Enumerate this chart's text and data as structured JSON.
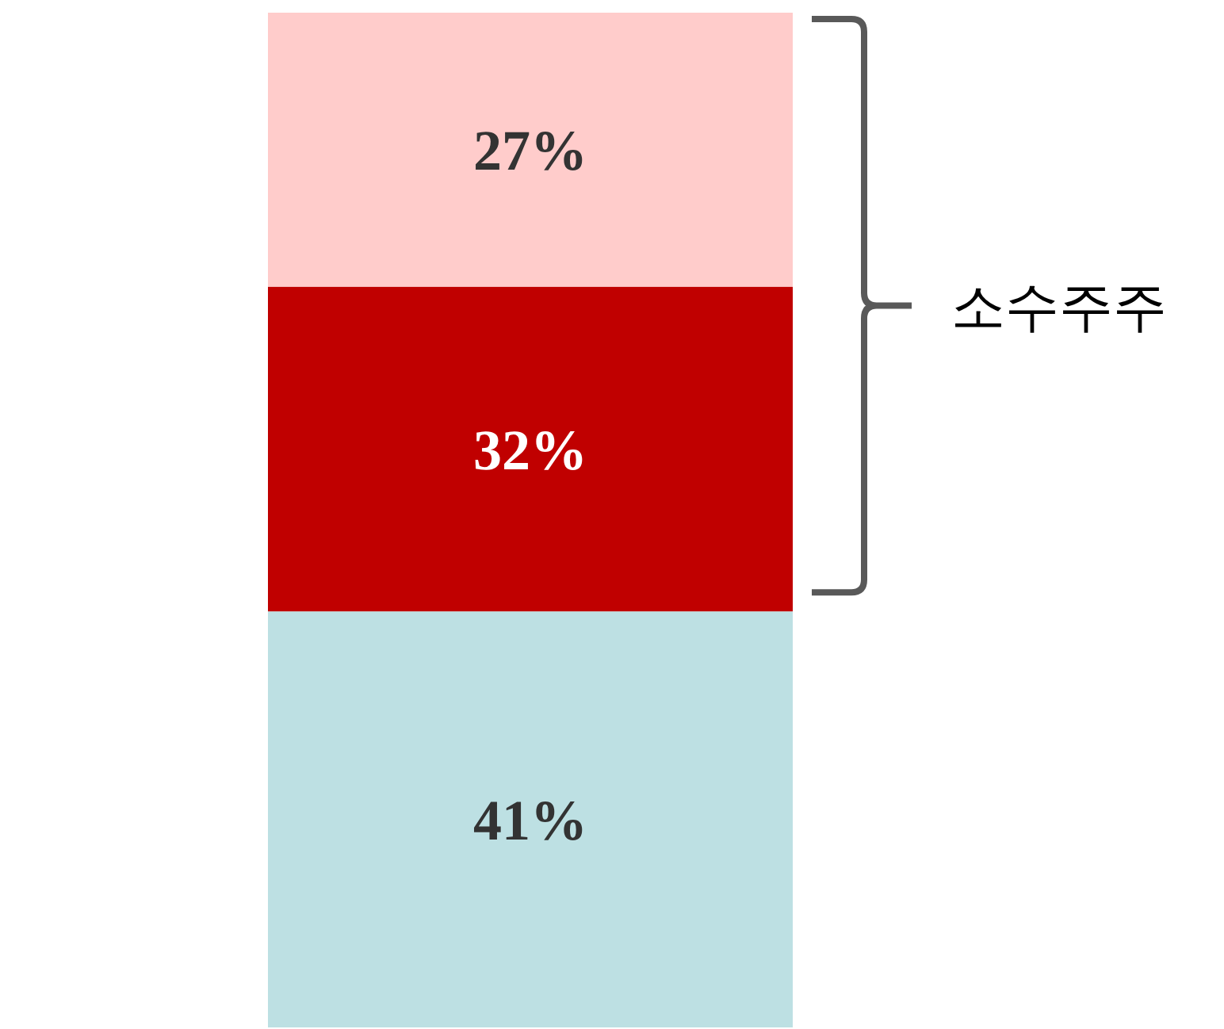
{
  "chart_data": {
    "type": "bar",
    "stacked": true,
    "categories": [
      null
    ],
    "annotations": [
      "소수주주"
    ],
    "series": [
      {
        "color": "#bde0e3",
        "values": [
          41
        ],
        "value_labels": [
          "41%"
        ]
      },
      {
        "color": "#c00000",
        "values": [
          32
        ],
        "value_labels": [
          "32%"
        ]
      },
      {
        "color": "#ffcccb",
        "values": [
          27
        ],
        "value_labels": [
          "27%"
        ]
      }
    ]
  }
}
